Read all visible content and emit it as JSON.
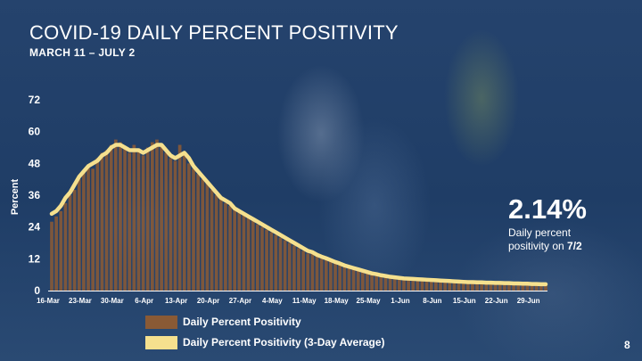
{
  "title": "COVID-19 DAILY PERCENT POSITIVITY",
  "subtitle": "MARCH 11 – JULY 2",
  "callout": {
    "value": "2.14%",
    "line1": "Daily percent",
    "line2_prefix": "positivity on ",
    "line2_date": "7/2"
  },
  "page_number": "8",
  "colors": {
    "bar": "#8a5a35",
    "line": "#f5e08e",
    "background": "#1f3d66",
    "text": "#ffffff"
  },
  "chart_data": {
    "type": "bar",
    "title": "COVID-19 DAILY PERCENT POSITIVITY",
    "subtitle": "MARCH 11 – JULY 2",
    "ylabel": "Percent",
    "xlabel": "",
    "ylim": [
      0,
      72
    ],
    "yticks": [
      0,
      12,
      24,
      36,
      48,
      60,
      72
    ],
    "x_tick_labels": [
      "16-Mar",
      "23-Mar",
      "30-Mar",
      "6-Apr",
      "13-Apr",
      "20-Apr",
      "27-Apr",
      "4-May",
      "11-May",
      "18-May",
      "25-May",
      "1-Jun",
      "8-Jun",
      "15-Jun",
      "22-Jun",
      "29-Jun"
    ],
    "x_tick_index": [
      0,
      7,
      14,
      21,
      28,
      35,
      42,
      49,
      56,
      63,
      70,
      77,
      84,
      91,
      98,
      105
    ],
    "grid": false,
    "legend_position": "bottom",
    "x_start_label": "16-Mar",
    "series": [
      {
        "name": "Daily Percent Positivity",
        "type": "bar",
        "values": [
          26,
          28,
          30,
          33,
          36,
          38,
          42,
          45,
          47,
          46,
          50,
          52,
          53,
          55,
          57,
          56,
          54,
          52,
          55,
          53,
          51,
          54,
          56,
          57,
          55,
          52,
          50,
          49,
          55,
          52,
          48,
          46,
          44,
          42,
          41,
          38,
          36,
          35,
          33,
          32,
          31,
          30,
          29,
          28,
          27,
          25,
          24,
          23,
          22,
          21,
          20,
          19,
          18,
          17,
          16,
          15,
          14,
          14,
          13,
          12,
          12,
          11,
          11,
          10,
          9,
          9,
          8,
          8,
          7,
          7,
          6,
          6,
          5.5,
          5,
          5,
          4.8,
          4.5,
          4.3,
          4.2,
          4.1,
          4,
          3.9,
          3.8,
          3.7,
          3.6,
          3.5,
          3.4,
          3.3,
          3.2,
          3.1,
          3.0,
          3.0,
          2.9,
          2.9,
          2.8,
          2.8,
          2.7,
          2.7,
          2.6,
          2.6,
          2.5,
          2.5,
          2.4,
          2.4,
          2.3,
          2.3,
          2.2,
          2.2,
          2.14
        ]
      },
      {
        "name": "Daily Percent Positivity (3-Day Average)",
        "type": "line",
        "values": [
          29,
          30,
          32,
          35,
          37,
          40,
          43,
          45,
          47,
          48,
          49,
          51,
          52,
          54,
          55,
          55,
          54,
          53,
          53,
          53,
          52,
          53,
          54,
          55,
          55,
          53,
          51,
          50,
          51,
          52,
          50,
          47,
          45,
          43,
          41,
          39,
          37,
          35,
          34,
          33,
          31,
          30,
          29,
          28,
          27,
          26,
          25,
          24,
          23,
          22,
          21,
          20,
          19,
          18,
          17,
          16,
          15,
          14.5,
          13.5,
          12.8,
          12.2,
          11.5,
          10.8,
          10.2,
          9.5,
          9,
          8.5,
          8,
          7.5,
          7,
          6.5,
          6.2,
          5.8,
          5.5,
          5.2,
          5,
          4.8,
          4.6,
          4.5,
          4.4,
          4.3,
          4.2,
          4.1,
          4,
          3.9,
          3.8,
          3.7,
          3.6,
          3.5,
          3.4,
          3.3,
          3.2,
          3.2,
          3.1,
          3.1,
          3.0,
          3.0,
          2.9,
          2.9,
          2.8,
          2.8,
          2.7,
          2.7,
          2.6,
          2.6,
          2.5,
          2.5,
          2.4,
          2.4
        ]
      }
    ]
  }
}
